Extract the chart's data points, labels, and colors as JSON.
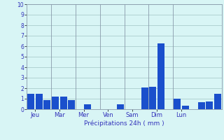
{
  "bars": [
    {
      "x": 0,
      "height": 1.5
    },
    {
      "x": 1,
      "height": 1.5
    },
    {
      "x": 2,
      "height": 0.9
    },
    {
      "x": 3,
      "height": 1.2
    },
    {
      "x": 4,
      "height": 1.2
    },
    {
      "x": 5,
      "height": 0.85
    },
    {
      "x": 6,
      "height": 0.0
    },
    {
      "x": 7,
      "height": 0.45
    },
    {
      "x": 8,
      "height": 0.0
    },
    {
      "x": 9,
      "height": 0.0
    },
    {
      "x": 10,
      "height": 0.0
    },
    {
      "x": 11,
      "height": 0.45
    },
    {
      "x": 12,
      "height": 0.0
    },
    {
      "x": 13,
      "height": 0.0
    },
    {
      "x": 14,
      "height": 2.1
    },
    {
      "x": 15,
      "height": 2.15
    },
    {
      "x": 16,
      "height": 6.3
    },
    {
      "x": 17,
      "height": 0.0
    },
    {
      "x": 18,
      "height": 1.0
    },
    {
      "x": 19,
      "height": 0.35
    },
    {
      "x": 20,
      "height": 0.0
    },
    {
      "x": 21,
      "height": 0.7
    },
    {
      "x": 22,
      "height": 0.75
    },
    {
      "x": 23,
      "height": 1.5
    }
  ],
  "bar_color": "#1a4fcc",
  "background_color": "#d8f5f5",
  "grid_color": "#aacccc",
  "tick_label_color": "#3333bb",
  "xlabel": "Précipitations 24h ( mm )",
  "xlabel_color": "#3333bb",
  "ylim": [
    0,
    10
  ],
  "yticks": [
    0,
    1,
    2,
    3,
    4,
    5,
    6,
    7,
    8,
    9,
    10
  ],
  "day_labels": [
    "Jeu",
    "Mar",
    "Mer",
    "Ven",
    "Sam",
    "Dim",
    "Lun"
  ],
  "day_positions": [
    0.5,
    3.5,
    6.5,
    9.5,
    12.5,
    15.5,
    18.5
  ],
  "separator_positions": [
    2.5,
    5.5,
    8.5,
    11.5,
    14.5,
    17.5
  ],
  "xlim": [
    -0.5,
    23.5
  ]
}
